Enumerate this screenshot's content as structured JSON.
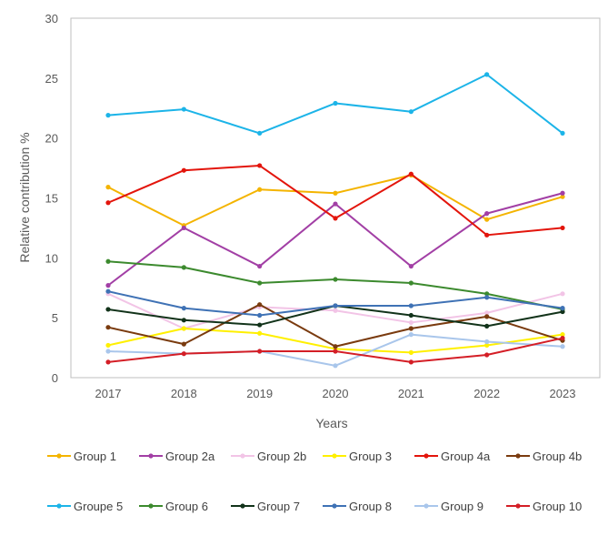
{
  "chart_data": {
    "type": "line",
    "title": "",
    "xlabel": "Years",
    "ylabel": "Relative contribution %",
    "ylim": [
      0,
      30
    ],
    "yticks": [
      0,
      5,
      10,
      15,
      20,
      25,
      30
    ],
    "categories": [
      "2017",
      "2018",
      "2019",
      "2020",
      "2021",
      "2022",
      "2023"
    ],
    "grid": false,
    "legend_position": "bottom",
    "series": [
      {
        "name": "Group 1",
        "color": "#F4B400",
        "values": [
          15.9,
          12.7,
          15.7,
          15.4,
          16.9,
          13.2,
          15.1
        ]
      },
      {
        "name": "Group 2a",
        "color": "#A23FA5",
        "values": [
          7.7,
          12.5,
          9.3,
          14.5,
          9.3,
          13.7,
          15.4
        ]
      },
      {
        "name": "Group 2b",
        "color": "#F2C4E6",
        "values": [
          7.0,
          4.1,
          5.9,
          5.6,
          4.6,
          5.4,
          7.0
        ]
      },
      {
        "name": "Group 3",
        "color": "#FFF000",
        "values": [
          2.7,
          4.1,
          3.7,
          2.4,
          2.1,
          2.7,
          3.6
        ]
      },
      {
        "name": "Group 4a",
        "color": "#E3150C",
        "values": [
          14.6,
          17.3,
          17.7,
          13.3,
          17.0,
          11.9,
          12.5
        ]
      },
      {
        "name": "Group 4b",
        "color": "#7A3B0F",
        "values": [
          4.2,
          2.8,
          6.1,
          2.6,
          4.1,
          5.1,
          3.1
        ]
      },
      {
        "name": "Groupe 5",
        "color": "#1CB4E8",
        "values": [
          21.9,
          22.4,
          20.4,
          22.9,
          22.2,
          25.3,
          20.4
        ]
      },
      {
        "name": "Group 6",
        "color": "#3C8A2E",
        "values": [
          9.7,
          9.2,
          7.9,
          8.2,
          7.9,
          7.0,
          5.7
        ]
      },
      {
        "name": "Group 7",
        "color": "#12331A",
        "values": [
          5.7,
          4.8,
          4.4,
          6.0,
          5.2,
          4.3,
          5.5
        ]
      },
      {
        "name": "Group 8",
        "color": "#3F72B5",
        "values": [
          7.2,
          5.8,
          5.2,
          6.0,
          6.0,
          6.7,
          5.8
        ]
      },
      {
        "name": "Group 9",
        "color": "#A9C6EB",
        "values": [
          2.2,
          2.0,
          2.2,
          1.0,
          3.6,
          3.0,
          2.6
        ]
      },
      {
        "name": "Group 10",
        "color": "#D41E26",
        "values": [
          1.3,
          2.0,
          2.2,
          2.2,
          1.3,
          1.9,
          3.3
        ]
      }
    ]
  }
}
